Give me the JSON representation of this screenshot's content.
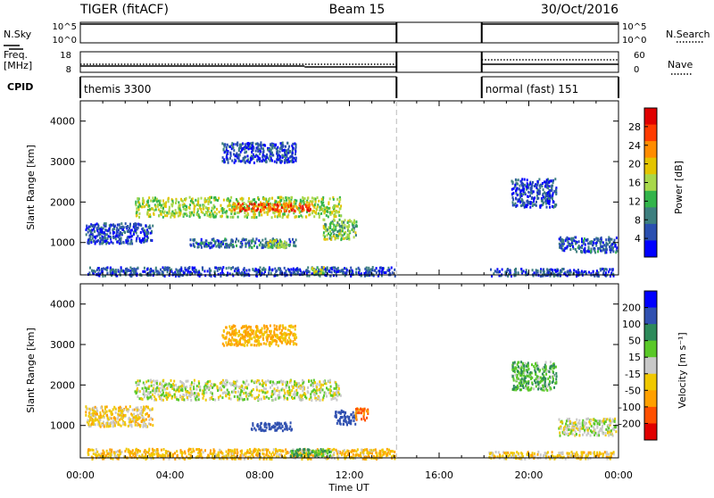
{
  "header": {
    "radar": "TIGER (fitACF)",
    "beam": "Beam 15",
    "date": "30/Oct/2016"
  },
  "meta_panels": {
    "nsky_label": "N.Sky",
    "nsky_ticks": [
      "10^5",
      "10^0"
    ],
    "nsearch_label": "N.Search",
    "nsearch_ticks": [
      "10^5",
      "10^0"
    ],
    "freq_label": "Freq.",
    "freq_unit": "[MHz]",
    "freq_ticks": [
      "18",
      "8"
    ],
    "nave_label": "Nave",
    "nave_ticks": [
      "60",
      "0"
    ],
    "cpid_label": "CPID",
    "cpid_modes": [
      {
        "name": "themis 3300",
        "start_hour": 0,
        "end_hour": 14.1
      },
      {
        "name": "normal (fast) 151",
        "start_hour": 17.9,
        "end_hour": 24
      }
    ]
  },
  "chart_data": [
    {
      "type": "heatmap",
      "name": "power",
      "xlabel": "Time UT",
      "ylabel": "Slant Range [km]",
      "x_ticks": [
        "00:00",
        "04:00",
        "08:00",
        "12:00",
        "16:00",
        "20:00",
        "00:00"
      ],
      "xlim_hours": [
        0,
        24
      ],
      "ylim": [
        200,
        4500
      ],
      "y_ticks": [
        1000,
        2000,
        3000,
        4000
      ],
      "colorbar": {
        "label": "Power [dB]",
        "ticks": [
          "4",
          "8",
          "12",
          "16",
          "20",
          "24",
          "28"
        ],
        "colors": [
          "#0000ff",
          "#2a4fb0",
          "#3d7f7f",
          "#32b44a",
          "#a8d84b",
          "#e3c400",
          "#ff8c00",
          "#ff3b00",
          "#e00000"
        ]
      },
      "data_gap_hours": [
        14.1,
        17.9
      ],
      "features": [
        {
          "h0": 2.4,
          "h1": 11.6,
          "r0": 1650,
          "r1": 2150,
          "level": 16,
          "desc": "main band"
        },
        {
          "h0": 6.8,
          "h1": 10.3,
          "r0": 1800,
          "r1": 2000,
          "level": 26,
          "desc": "band core"
        },
        {
          "h0": 0.3,
          "h1": 14.0,
          "r0": 200,
          "r1": 420,
          "level": 5,
          "desc": "ground scatter"
        },
        {
          "h0": 10.2,
          "h1": 11.0,
          "r0": 250,
          "r1": 420,
          "level": 14,
          "desc": "ground patch"
        },
        {
          "h0": 4.8,
          "h1": 9.6,
          "r0": 900,
          "r1": 1120,
          "level": 7,
          "desc": "lower patch"
        },
        {
          "h0": 8.3,
          "h1": 9.2,
          "r0": 900,
          "r1": 1100,
          "level": 16,
          "desc": "lower core"
        },
        {
          "h0": 10.8,
          "h1": 12.3,
          "r0": 1100,
          "r1": 1600,
          "level": 14,
          "desc": "blob"
        },
        {
          "h0": 6.3,
          "h1": 9.6,
          "r0": 3000,
          "r1": 3500,
          "level": 5,
          "desc": "upper patch"
        },
        {
          "h0": 0.2,
          "h1": 3.2,
          "r0": 1000,
          "r1": 1500,
          "level": 5,
          "desc": "left patch"
        },
        {
          "h0": 18.2,
          "h1": 23.8,
          "r0": 200,
          "r1": 380,
          "level": 5,
          "desc": "evening ground"
        },
        {
          "h0": 21.3,
          "h1": 23.9,
          "r0": 780,
          "r1": 1160,
          "level": 6,
          "desc": "evening patch"
        },
        {
          "h0": 19.2,
          "h1": 21.2,
          "r0": 1900,
          "r1": 2600,
          "level": 5,
          "desc": "evening sparse"
        }
      ]
    },
    {
      "type": "heatmap",
      "name": "velocity",
      "xlabel": "Time UT",
      "ylabel": "Slant Range [km]",
      "x_ticks": [
        "00:00",
        "04:00",
        "08:00",
        "12:00",
        "16:00",
        "20:00",
        "00:00"
      ],
      "xlim_hours": [
        0,
        24
      ],
      "ylim": [
        200,
        4500
      ],
      "y_ticks": [
        1000,
        2000,
        3000,
        4000
      ],
      "colorbar": {
        "label": "Velocity [m s⁻¹]",
        "ticks": [
          "200",
          "100",
          "50",
          "15",
          "-15",
          "-50",
          "-100",
          "-200"
        ],
        "colors": [
          "#0000ff",
          "#3050b0",
          "#2d8a5a",
          "#5ac828",
          "#c8c8c8",
          "#f0c800",
          "#ffa000",
          "#ff5000",
          "#e00000"
        ]
      },
      "data_gap_hours": [
        14.1,
        17.9
      ],
      "features": [
        {
          "h0": 2.4,
          "h1": 11.6,
          "r0": 1650,
          "r1": 2150,
          "level": 0,
          "desc": "main band grey"
        },
        {
          "h0": 11.3,
          "h1": 12.3,
          "r0": 1050,
          "r1": 1400,
          "level": 150,
          "desc": "blue patch"
        },
        {
          "h0": 12.2,
          "h1": 12.8,
          "r0": 1150,
          "r1": 1450,
          "level": -110,
          "desc": "orange patch"
        },
        {
          "h0": 7.5,
          "h1": 9.4,
          "r0": 900,
          "r1": 1100,
          "level": 140,
          "desc": "lower blue"
        },
        {
          "h0": 0.3,
          "h1": 14.0,
          "r0": 200,
          "r1": 450,
          "level": -40,
          "desc": "ground mix"
        },
        {
          "h0": 9.3,
          "h1": 11.2,
          "r0": 250,
          "r1": 450,
          "level": 45,
          "desc": "ground green"
        },
        {
          "h0": 6.3,
          "h1": 9.6,
          "r0": 3000,
          "r1": 3500,
          "level": -50,
          "desc": "upper patch"
        },
        {
          "h0": 0.2,
          "h1": 3.2,
          "r0": 1000,
          "r1": 1500,
          "level": -30,
          "desc": "left patch"
        },
        {
          "h0": 18.2,
          "h1": 23.8,
          "r0": 200,
          "r1": 380,
          "level": -30,
          "desc": "evening ground"
        },
        {
          "h0": 21.3,
          "h1": 23.9,
          "r0": 780,
          "r1": 1200,
          "level": 0,
          "desc": "evening grey"
        },
        {
          "h0": 19.2,
          "h1": 21.2,
          "r0": 1900,
          "r1": 2600,
          "level": 40,
          "desc": "evening sparse"
        }
      ]
    }
  ]
}
